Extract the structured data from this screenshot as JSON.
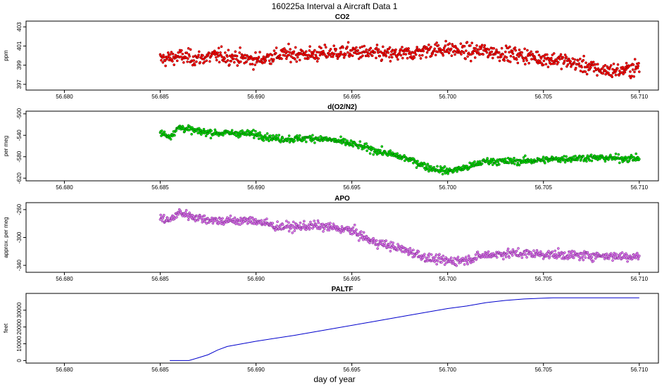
{
  "figure": {
    "title": "160225a   Interval a Aircraft Data 1",
    "xlabel": "day of year"
  },
  "chart_data": [
    {
      "id": "co2",
      "type": "scatter",
      "title": "CO2",
      "ylabel": "ppm",
      "xlim": [
        56.678,
        56.711
      ],
      "ylim": [
        396.4,
        403.6
      ],
      "xticks": [
        56.68,
        56.685,
        56.69,
        56.695,
        56.7,
        56.705,
        56.71
      ],
      "xtick_labels": [
        "56.680",
        "56.685",
        "56.690",
        "56.695",
        "56.700",
        "56.705",
        "56.710"
      ],
      "yticks": [
        397,
        399,
        401,
        403
      ],
      "ytick_labels": [
        "397",
        "399",
        "401",
        "403"
      ],
      "color": "#ff0000",
      "edge_color": "#7a0000",
      "series": [
        {
          "x": [
            56.685,
            56.686,
            56.687,
            56.688,
            56.689,
            56.69,
            56.691,
            56.692,
            56.693,
            56.694,
            56.695,
            56.696,
            56.697,
            56.698,
            56.699,
            56.7,
            56.701,
            56.702,
            56.703,
            56.704,
            56.705,
            56.706,
            56.707,
            56.708,
            56.709,
            56.71
          ],
          "y": [
            399.6,
            399.9,
            399.7,
            400.0,
            399.8,
            399.5,
            400.0,
            400.2,
            400.1,
            400.3,
            400.4,
            400.2,
            400.1,
            400.2,
            400.6,
            400.7,
            400.4,
            400.5,
            400.2,
            400.0,
            399.7,
            399.5,
            399.0,
            398.5,
            398.4,
            398.8
          ]
        }
      ],
      "grid": false,
      "legend": "none"
    },
    {
      "id": "do2n2",
      "type": "scatter",
      "title": "d(O2/N2)",
      "ylabel": "per meg",
      "xlim": [
        56.678,
        56.711
      ],
      "ylim": [
        -625,
        -495
      ],
      "xticks": [
        56.68,
        56.685,
        56.69,
        56.695,
        56.7,
        56.705,
        56.71
      ],
      "xtick_labels": [
        "56.680",
        "56.685",
        "56.690",
        "56.695",
        "56.700",
        "56.705",
        "56.710"
      ],
      "yticks": [
        -500,
        -540,
        -580,
        -620
      ],
      "ytick_labels": [
        "-500",
        "-540",
        "-580",
        "-620"
      ],
      "color": "#00dd00",
      "edge_color": "#006600",
      "series": [
        {
          "x": [
            56.685,
            56.6855,
            56.686,
            56.687,
            56.688,
            56.689,
            56.69,
            56.691,
            56.692,
            56.693,
            56.694,
            56.695,
            56.696,
            56.697,
            56.698,
            56.699,
            56.7,
            56.701,
            56.702,
            56.703,
            56.704,
            56.705,
            56.706,
            56.707,
            56.708,
            56.709,
            56.71
          ],
          "y": [
            -535,
            -542,
            -525,
            -533,
            -536,
            -536,
            -538,
            -546,
            -547,
            -545,
            -549,
            -556,
            -566,
            -575,
            -585,
            -600,
            -607,
            -600,
            -588,
            -589,
            -588,
            -586,
            -584,
            -582,
            -582,
            -583,
            -583
          ]
        }
      ],
      "grid": false,
      "legend": "none"
    },
    {
      "id": "apo",
      "type": "scatter",
      "title": "APO",
      "ylabel": "approx. per meg",
      "xlim": [
        56.678,
        56.711
      ],
      "ylim": [
        -350,
        -250
      ],
      "xticks": [
        56.68,
        56.685,
        56.69,
        56.695,
        56.7,
        56.705,
        56.71
      ],
      "xtick_labels": [
        "56.680",
        "56.685",
        "56.690",
        "56.695",
        "56.700",
        "56.705",
        "56.710"
      ],
      "yticks": [
        -260,
        -300,
        -340
      ],
      "ytick_labels": [
        "-260",
        "-300",
        "-340"
      ],
      "color": "#dd77ee",
      "edge_color": "#7a2a8a",
      "series": [
        {
          "x": [
            56.685,
            56.6855,
            56.686,
            56.687,
            56.688,
            56.689,
            56.69,
            56.691,
            56.692,
            56.693,
            56.694,
            56.695,
            56.696,
            56.697,
            56.698,
            56.699,
            56.7,
            56.701,
            56.702,
            56.703,
            56.704,
            56.705,
            56.706,
            56.707,
            56.708,
            56.709,
            56.71
          ],
          "y": [
            -272,
            -276,
            -264,
            -272,
            -276,
            -276,
            -276,
            -284,
            -285,
            -283,
            -286,
            -290,
            -305,
            -312,
            -320,
            -330,
            -334,
            -332,
            -325,
            -323,
            -323,
            -324,
            -325,
            -326,
            -326,
            -327,
            -327
          ]
        }
      ],
      "grid": false,
      "legend": "none"
    },
    {
      "id": "paltf",
      "type": "line",
      "title": "PALTF",
      "ylabel": "feet",
      "xlim": [
        56.678,
        56.711
      ],
      "ylim": [
        -1500,
        40000
      ],
      "xticks": [
        56.68,
        56.685,
        56.69,
        56.695,
        56.7,
        56.705,
        56.71
      ],
      "xtick_labels": [
        "56.680",
        "56.685",
        "56.690",
        "56.695",
        "56.700",
        "56.705",
        "56.710"
      ],
      "yticks": [
        0,
        10000,
        20000,
        30000
      ],
      "ytick_labels": [
        "0",
        "10000",
        "20000",
        "30000"
      ],
      "color": "#0000cc",
      "series": [
        {
          "x": [
            56.6855,
            56.6865,
            56.687,
            56.6875,
            56.688,
            56.6885,
            56.69,
            56.692,
            56.694,
            56.696,
            56.698,
            56.7,
            56.701,
            56.702,
            56.703,
            56.704,
            56.705,
            56.7055,
            56.707,
            56.71
          ],
          "y": [
            0,
            0,
            1700,
            3500,
            6300,
            8400,
            11500,
            15000,
            19000,
            23000,
            27000,
            31000,
            32500,
            34500,
            35800,
            36700,
            37200,
            37400,
            37400,
            37400
          ]
        }
      ],
      "grid": false,
      "legend": "none"
    }
  ]
}
